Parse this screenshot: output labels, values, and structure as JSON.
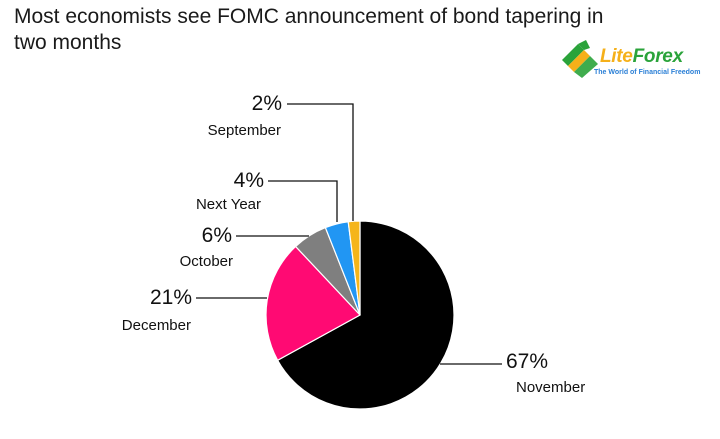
{
  "title": "Most economists see FOMC announcement of bond tapering in two months",
  "logo": {
    "brand_lite": "Lite",
    "brand_forex": "Forex",
    "tagline": "The World of Financial Freedom"
  },
  "colors": {
    "November": "#000000",
    "December": "#ff0a73",
    "October": "#7f7f7f",
    "Next Year": "#2196f3",
    "September": "#f5b51a"
  },
  "chart_data": {
    "type": "pie",
    "title": "Most economists see FOMC announcement of bond tapering in two months",
    "start": "12 o'clock",
    "direction": "clockwise",
    "slices": [
      {
        "label": "November",
        "value": 67,
        "value_label": "67%"
      },
      {
        "label": "December",
        "value": 21,
        "value_label": "21%"
      },
      {
        "label": "October",
        "value": 6,
        "value_label": "6%"
      },
      {
        "label": "Next Year",
        "value": 4,
        "value_label": "4%"
      },
      {
        "label": "September",
        "value": 2,
        "value_label": "2%"
      }
    ]
  }
}
